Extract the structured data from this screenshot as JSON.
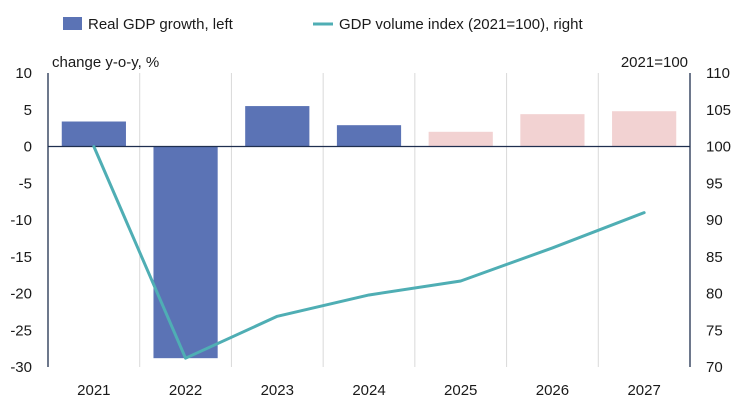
{
  "chart_data": {
    "type": "bar",
    "categories": [
      "2021",
      "2022",
      "2023",
      "2024",
      "2025",
      "2026",
      "2027"
    ],
    "series": [
      {
        "name": "Real GDP growth, left",
        "type": "bar",
        "axis": "left",
        "values": [
          3.4,
          -28.8,
          5.5,
          2.9,
          2.0,
          4.4,
          4.8
        ],
        "forecast_from_index": 4
      },
      {
        "name": "GDP volume index (2021=100), right",
        "type": "line",
        "axis": "right",
        "values": [
          100,
          71.2,
          76.9,
          79.8,
          81.7,
          86.2,
          91.0
        ]
      }
    ],
    "left_axis": {
      "label": "change y-o-y, %",
      "min": -30,
      "max": 10,
      "ticks": [
        10,
        5,
        0,
        -5,
        -10,
        -15,
        -20,
        -25,
        -30
      ]
    },
    "right_axis": {
      "label": "2021=100",
      "min": 70,
      "max": 110,
      "ticks": [
        110,
        105,
        100,
        95,
        90,
        85,
        80,
        75,
        70
      ]
    },
    "legend_position": "top",
    "grid": "vertical",
    "colors": {
      "bar_actual": "#5b73b5",
      "bar_forecast": "#f2d2d2",
      "line": "#4faeb4",
      "grid": "#d9d9d9",
      "axis": "#1f2f4f"
    }
  }
}
